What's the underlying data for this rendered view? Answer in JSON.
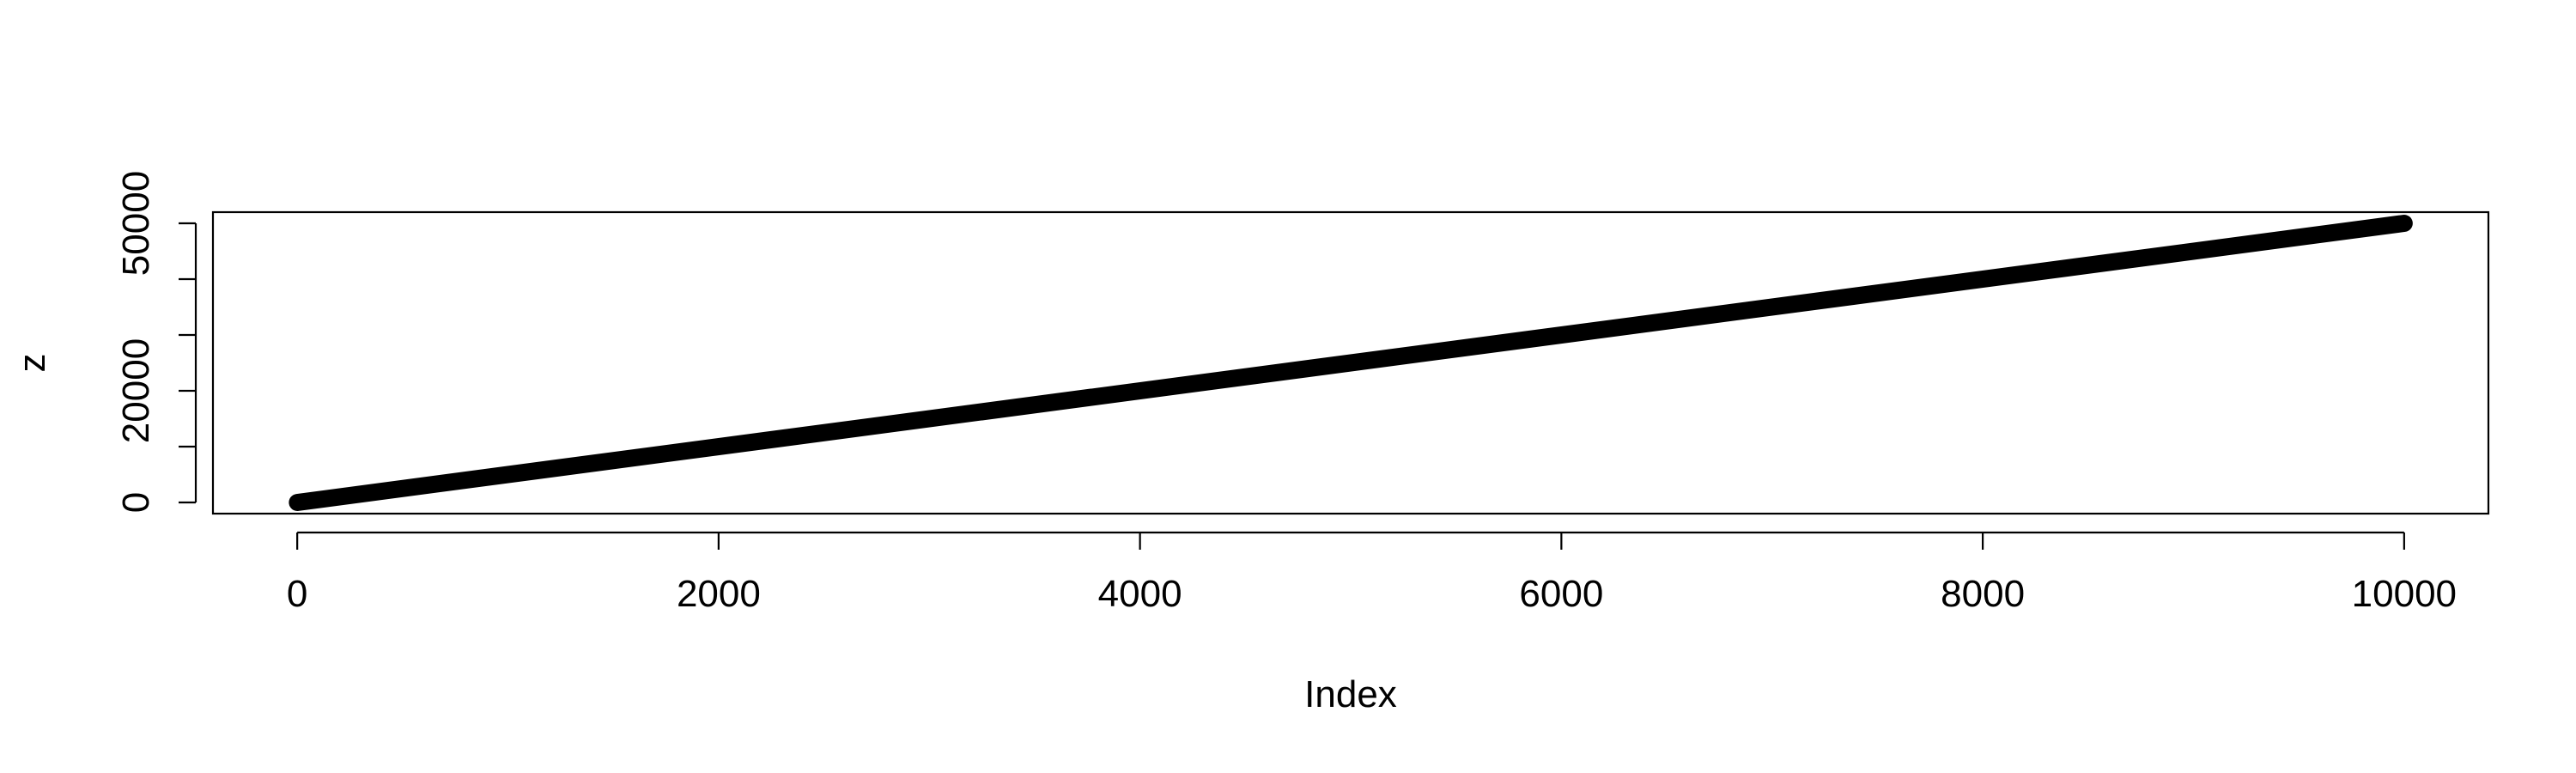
{
  "chart_data": {
    "type": "line",
    "title": "",
    "xlabel": "Index",
    "ylabel": "z",
    "xlim": [
      -400,
      10400
    ],
    "ylim": [
      -2000,
      52000
    ],
    "x_ticks": [
      0,
      2000,
      4000,
      6000,
      8000,
      10000
    ],
    "x_tick_labels": [
      "0",
      "2000",
      "4000",
      "6000",
      "8000",
      "10000"
    ],
    "y_ticks": [
      0,
      10000,
      20000,
      30000,
      40000,
      50000
    ],
    "y_tick_labels": [
      "0",
      "",
      "20000",
      "",
      "",
      "50000"
    ],
    "series": [
      {
        "x": [
          1,
          10000
        ],
        "y": [
          0,
          50000
        ],
        "color": "#000000"
      }
    ],
    "grid": false,
    "legend": false
  }
}
